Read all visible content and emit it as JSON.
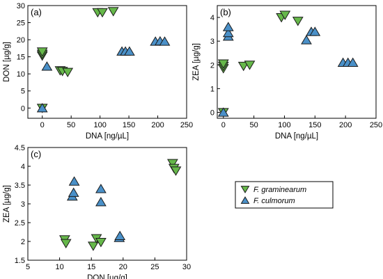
{
  "colors": {
    "graminearum": "#66b84a",
    "culmorum": "#4a90c8",
    "edge": "#1a1a1a"
  },
  "legend": {
    "placement": "right of panel c",
    "items": [
      {
        "key": "graminearum",
        "label": "F. graminearum",
        "marker": "triangle-down"
      },
      {
        "key": "culmorum",
        "label": "F. culmorum",
        "marker": "triangle-up"
      }
    ]
  },
  "chart_data": [
    {
      "type": "scatter",
      "panel": "(a)",
      "xlabel": "DNA [ng/µL]",
      "ylabel": "DON [µg/g]",
      "xlim": [
        -25,
        250
      ],
      "ylim": [
        -3,
        30
      ],
      "xticks": [
        0,
        50,
        100,
        150,
        200,
        250
      ],
      "yticks": [
        0,
        5,
        10,
        15,
        20,
        25,
        30
      ],
      "grid": false,
      "series": [
        {
          "key": "graminearum",
          "name": "F. graminearum",
          "points": [
            [
              0,
              0
            ],
            [
              0,
              15.3
            ],
            [
              0,
              15.8
            ],
            [
              0,
              16.5
            ],
            [
              31,
              11
            ],
            [
              35,
              10.8
            ],
            [
              44,
              10.5
            ],
            [
              96,
              28
            ],
            [
              104,
              28
            ],
            [
              123,
              28.3
            ]
          ]
        },
        {
          "key": "culmorum",
          "name": "F. culmorum",
          "points": [
            [
              0,
              0
            ],
            [
              8,
              12.2
            ],
            [
              138,
              16.6
            ],
            [
              144,
              16.6
            ],
            [
              151,
              16.6
            ],
            [
              196,
              19.5
            ],
            [
              204,
              19.6
            ],
            [
              212,
              19.5
            ]
          ]
        }
      ]
    },
    {
      "type": "scatter",
      "panel": "(b)",
      "xlabel": "DNA [ng/µL]",
      "ylabel": "ZEA [µg/g]",
      "xlim": [
        -10,
        250
      ],
      "ylim": [
        -0.25,
        4.5
      ],
      "xticks": [
        0,
        50,
        100,
        150,
        200,
        250
      ],
      "yticks": [
        0,
        1,
        2,
        3,
        4
      ],
      "grid": false,
      "series": [
        {
          "key": "graminearum",
          "name": "F. graminearum",
          "points": [
            [
              0,
              0
            ],
            [
              0,
              1.85
            ],
            [
              0,
              1.95
            ],
            [
              0,
              2.05
            ],
            [
              33,
              1.95
            ],
            [
              43,
              2
            ],
            [
              95,
              4
            ],
            [
              101,
              4.1
            ],
            [
              122,
              3.85
            ]
          ]
        },
        {
          "key": "culmorum",
          "name": "F. culmorum",
          "points": [
            [
              0,
              0
            ],
            [
              8,
              3.2
            ],
            [
              8,
              3.35
            ],
            [
              8,
              3.6
            ],
            [
              136,
              3.05
            ],
            [
              144,
              3.4
            ],
            [
              150,
              3.4
            ],
            [
              196,
              2.1
            ],
            [
              204,
              2.1
            ],
            [
              212,
              2.1
            ]
          ]
        }
      ]
    },
    {
      "type": "scatter",
      "panel": "(c)",
      "xlabel": "DON [µg/g]",
      "ylabel": "ZEA [µg/g]",
      "xlim": [
        5,
        30
      ],
      "ylim": [
        1.5,
        4.5
      ],
      "xticks": [
        5,
        10,
        15,
        20,
        25,
        30
      ],
      "yticks": [
        1.5,
        2,
        2.5,
        3,
        3.5,
        4,
        4.5
      ],
      "grid": false,
      "series": [
        {
          "key": "graminearum",
          "name": "F. graminearum",
          "points": [
            [
              10.8,
              2.05
            ],
            [
              11,
              1.95
            ],
            [
              15.3,
              1.88
            ],
            [
              15.8,
              2.08
            ],
            [
              16.5,
              1.98
            ],
            [
              27.8,
              4.08
            ],
            [
              28,
              3.95
            ],
            [
              28.3,
              3.88
            ]
          ]
        },
        {
          "key": "culmorum",
          "name": "F. culmorum",
          "points": [
            [
              12,
              3.2
            ],
            [
              12.2,
              3.3
            ],
            [
              12.3,
              3.6
            ],
            [
              16.5,
              3.05
            ],
            [
              16.5,
              3.4
            ],
            [
              19.4,
              2.1
            ],
            [
              19.5,
              2.15
            ]
          ]
        }
      ]
    }
  ]
}
